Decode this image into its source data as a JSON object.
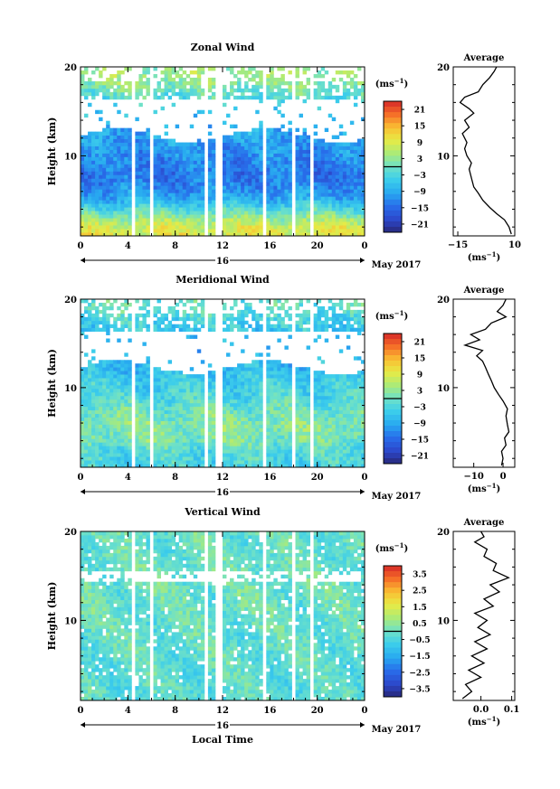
{
  "figure": {
    "x_axis_label": "Local Time"
  },
  "chart_data": [
    {
      "type": "heatmap",
      "title": "Zonal Wind",
      "ylabel": "Height (km)",
      "ylim": [
        1,
        20
      ],
      "xlim": [
        0,
        24
      ],
      "x_ticks": [
        "0",
        "4",
        "8",
        "12",
        "16",
        "20",
        "0"
      ],
      "y_ticks": [
        "10",
        "20"
      ],
      "date_day": "16",
      "date_label": "May 2017",
      "colorbar_unit": "(ms",
      "colorbar_unit_sup": "−1",
      "colorbar_unit_close": ")",
      "colorbar_ticks": [
        "21",
        "15",
        "9",
        "3",
        "−3",
        "−9",
        "−15",
        "−21"
      ],
      "colorbar_range": [
        -24,
        24
      ],
      "data_gaps_local_time": [
        [
          4.2,
          4.5
        ],
        [
          5.8,
          6.1
        ],
        [
          10.4,
          10.8
        ],
        [
          11.5,
          11.9
        ],
        [
          15.4,
          15.7
        ],
        [
          17.8,
          18.0
        ],
        [
          19.4,
          19.7
        ]
      ],
      "wind_profile_by_height": [
        {
          "height_km": 1,
          "value": 9
        },
        {
          "height_km": 2,
          "value": 8
        },
        {
          "height_km": 3,
          "value": 4
        },
        {
          "height_km": 4,
          "value": -2
        },
        {
          "height_km": 5,
          "value": -8
        },
        {
          "height_km": 6,
          "value": -11
        },
        {
          "height_km": 7,
          "value": -13
        },
        {
          "height_km": 8,
          "value": -14
        },
        {
          "height_km": 9,
          "value": -13
        },
        {
          "height_km": 10,
          "value": -12
        },
        {
          "height_km": 11,
          "value": -11
        },
        {
          "height_km": 12,
          "value": -10
        },
        {
          "height_km": 15,
          "value": -5
        },
        {
          "height_km": 16,
          "value": -3
        },
        {
          "height_km": 18,
          "value": 2
        },
        {
          "height_km": 19,
          "value": 4
        }
      ],
      "average_panel": {
        "title": "Average",
        "xlim": [
          -17,
          10
        ],
        "x_ticks": [
          -15,
          10
        ],
        "x_tick_labels": [
          "−15",
          "10"
        ],
        "xlabel": "(ms",
        "xlabel_sup": "−1",
        "xlabel_close": ")",
        "ylim": [
          1,
          20
        ],
        "y_ticks": [
          "10",
          "20"
        ],
        "profile": [
          {
            "height_km": 1.2,
            "value": 8.5
          },
          {
            "height_km": 2.0,
            "value": 7.5
          },
          {
            "height_km": 2.8,
            "value": 5.5
          },
          {
            "height_km": 3.5,
            "value": 2
          },
          {
            "height_km": 4.2,
            "value": -1
          },
          {
            "height_km": 5.0,
            "value": -4
          },
          {
            "height_km": 5.8,
            "value": -6
          },
          {
            "height_km": 6.5,
            "value": -8
          },
          {
            "height_km": 7.5,
            "value": -9
          },
          {
            "height_km": 8.5,
            "value": -10
          },
          {
            "height_km": 9.2,
            "value": -9
          },
          {
            "height_km": 10.0,
            "value": -11
          },
          {
            "height_km": 10.8,
            "value": -12
          },
          {
            "height_km": 11.5,
            "value": -11
          },
          {
            "height_km": 12.5,
            "value": -13
          },
          {
            "height_km": 13.2,
            "value": -10
          },
          {
            "height_km": 14.0,
            "value": -12
          },
          {
            "height_km": 14.8,
            "value": -8
          },
          {
            "height_km": 15.3,
            "value": -10
          },
          {
            "height_km": 16.0,
            "value": -14
          },
          {
            "height_km": 16.6,
            "value": -12
          },
          {
            "height_km": 17.2,
            "value": -6
          },
          {
            "height_km": 18.0,
            "value": -4
          },
          {
            "height_km": 18.8,
            "value": -1
          },
          {
            "height_km": 19.5,
            "value": 1
          },
          {
            "height_km": 20.0,
            "value": 2
          }
        ]
      }
    },
    {
      "type": "heatmap",
      "title": "Meridional Wind",
      "ylabel": "Height (km)",
      "ylim": [
        1,
        20
      ],
      "xlim": [
        0,
        24
      ],
      "x_ticks": [
        "0",
        "4",
        "8",
        "12",
        "16",
        "20",
        "0"
      ],
      "y_ticks": [
        "10",
        "20"
      ],
      "date_day": "16",
      "date_label": "May 2017",
      "colorbar_unit": "(ms",
      "colorbar_unit_sup": "−1",
      "colorbar_unit_close": ")",
      "colorbar_ticks": [
        "21",
        "15",
        "9",
        "3",
        "−3",
        "−9",
        "−15",
        "−21"
      ],
      "colorbar_range": [
        -24,
        24
      ],
      "data_gaps_local_time": [
        [
          4.2,
          4.5
        ],
        [
          5.8,
          6.1
        ],
        [
          10.4,
          10.8
        ],
        [
          11.5,
          11.9
        ],
        [
          15.4,
          15.7
        ],
        [
          17.8,
          18.0
        ],
        [
          19.4,
          19.7
        ]
      ],
      "wind_profile_by_height": [
        {
          "height_km": 1,
          "value": -4
        },
        {
          "height_km": 2,
          "value": -3
        },
        {
          "height_km": 3,
          "value": -2
        },
        {
          "height_km": 4,
          "value": 1
        },
        {
          "height_km": 5,
          "value": 2
        },
        {
          "height_km": 6,
          "value": 2
        },
        {
          "height_km": 7,
          "value": 1
        },
        {
          "height_km": 8,
          "value": -1
        },
        {
          "height_km": 9,
          "value": -3
        },
        {
          "height_km": 10,
          "value": -4
        },
        {
          "height_km": 11,
          "value": -5
        },
        {
          "height_km": 12,
          "value": -7
        },
        {
          "height_km": 15,
          "value": -8
        },
        {
          "height_km": 16,
          "value": -6
        },
        {
          "height_km": 18,
          "value": -3
        },
        {
          "height_km": 19,
          "value": -1
        }
      ],
      "average_panel": {
        "title": "Average",
        "xlim": [
          -17,
          4
        ],
        "x_ticks": [
          -10,
          0
        ],
        "x_tick_labels": [
          "−10",
          "0"
        ],
        "xlabel": "(ms",
        "xlabel_sup": "−1",
        "xlabel_close": ")",
        "ylim": [
          1,
          20
        ],
        "y_ticks": [
          "10",
          "20"
        ],
        "profile": [
          {
            "height_km": 1.2,
            "value": -0.5
          },
          {
            "height_km": 2.0,
            "value": 0
          },
          {
            "height_km": 2.8,
            "value": -0.5
          },
          {
            "height_km": 3.5,
            "value": 1
          },
          {
            "height_km": 4.3,
            "value": 0.5
          },
          {
            "height_km": 5.0,
            "value": 2
          },
          {
            "height_km": 5.8,
            "value": 1.5
          },
          {
            "height_km": 6.8,
            "value": 1
          },
          {
            "height_km": 7.6,
            "value": 1.5
          },
          {
            "height_km": 8.5,
            "value": 0
          },
          {
            "height_km": 9.2,
            "value": -1.5
          },
          {
            "height_km": 10.0,
            "value": -3
          },
          {
            "height_km": 10.8,
            "value": -4
          },
          {
            "height_km": 11.5,
            "value": -5
          },
          {
            "height_km": 12.3,
            "value": -6
          },
          {
            "height_km": 13.0,
            "value": -7
          },
          {
            "height_km": 13.6,
            "value": -9
          },
          {
            "height_km": 14.2,
            "value": -7
          },
          {
            "height_km": 14.8,
            "value": -13
          },
          {
            "height_km": 15.4,
            "value": -8
          },
          {
            "height_km": 16.0,
            "value": -11
          },
          {
            "height_km": 16.6,
            "value": -6
          },
          {
            "height_km": 17.3,
            "value": -4
          },
          {
            "height_km": 18.0,
            "value": 1
          },
          {
            "height_km": 18.6,
            "value": -2
          },
          {
            "height_km": 19.3,
            "value": 0
          },
          {
            "height_km": 20.0,
            "value": 1
          }
        ]
      }
    },
    {
      "type": "heatmap",
      "title": "Vertical Wind",
      "ylabel": "Height (km)",
      "ylim": [
        1,
        20
      ],
      "xlim": [
        0,
        24
      ],
      "x_ticks": [
        "0",
        "4",
        "8",
        "12",
        "16",
        "20",
        "0"
      ],
      "y_ticks": [
        "10",
        "20"
      ],
      "date_day": "16",
      "date_label": "May 2017",
      "colorbar_unit": "(ms",
      "colorbar_unit_sup": "−1",
      "colorbar_unit_close": ")",
      "colorbar_ticks": [
        "3.5",
        "2.5",
        "1.5",
        "0.5",
        "−0.5",
        "−1.5",
        "−2.5",
        "−3.5"
      ],
      "colorbar_range": [
        -4,
        4
      ],
      "data_gaps_local_time": [
        [
          4.2,
          4.5
        ],
        [
          5.8,
          6.1
        ],
        [
          10.4,
          10.8
        ],
        [
          11.5,
          11.9
        ],
        [
          15.4,
          15.7
        ],
        [
          17.8,
          18.0
        ],
        [
          19.4,
          19.7
        ]
      ],
      "wind_profile_by_height": [
        {
          "height_km": 1,
          "value": -0.3
        },
        {
          "height_km": 5,
          "value": -0.2
        },
        {
          "height_km": 10,
          "value": -0.1
        },
        {
          "height_km": 15,
          "value": 0
        },
        {
          "height_km": 19,
          "value": -0.1
        }
      ],
      "average_panel": {
        "title": "Average",
        "xlim": [
          -0.09,
          0.11
        ],
        "x_ticks": [
          0.0,
          0.1
        ],
        "x_tick_labels": [
          "0.0",
          "0.1"
        ],
        "xlabel": "(ms",
        "xlabel_sup": "−1",
        "xlabel_close": ")",
        "ylim": [
          1,
          20
        ],
        "y_ticks": [
          "10",
          "20"
        ],
        "profile": [
          {
            "height_km": 1.2,
            "value": -0.06
          },
          {
            "height_km": 2.0,
            "value": -0.03
          },
          {
            "height_km": 2.8,
            "value": -0.05
          },
          {
            "height_km": 3.6,
            "value": 0.0
          },
          {
            "height_km": 4.4,
            "value": -0.04
          },
          {
            "height_km": 5.2,
            "value": 0.01
          },
          {
            "height_km": 6.0,
            "value": -0.03
          },
          {
            "height_km": 6.8,
            "value": 0.02
          },
          {
            "height_km": 7.6,
            "value": -0.02
          },
          {
            "height_km": 8.4,
            "value": 0.03
          },
          {
            "height_km": 9.2,
            "value": -0.01
          },
          {
            "height_km": 10.0,
            "value": 0.02
          },
          {
            "height_km": 10.8,
            "value": -0.02
          },
          {
            "height_km": 11.6,
            "value": 0.04
          },
          {
            "height_km": 12.4,
            "value": 0.01
          },
          {
            "height_km": 13.2,
            "value": 0.06
          },
          {
            "height_km": 14.0,
            "value": 0.03
          },
          {
            "height_km": 14.8,
            "value": 0.09
          },
          {
            "height_km": 15.6,
            "value": 0.04
          },
          {
            "height_km": 16.4,
            "value": 0.05
          },
          {
            "height_km": 17.2,
            "value": 0.01
          },
          {
            "height_km": 18.0,
            "value": 0.02
          },
          {
            "height_km": 18.8,
            "value": -0.02
          },
          {
            "height_km": 19.4,
            "value": 0.01
          },
          {
            "height_km": 20.0,
            "value": 0.0
          }
        ]
      }
    }
  ]
}
